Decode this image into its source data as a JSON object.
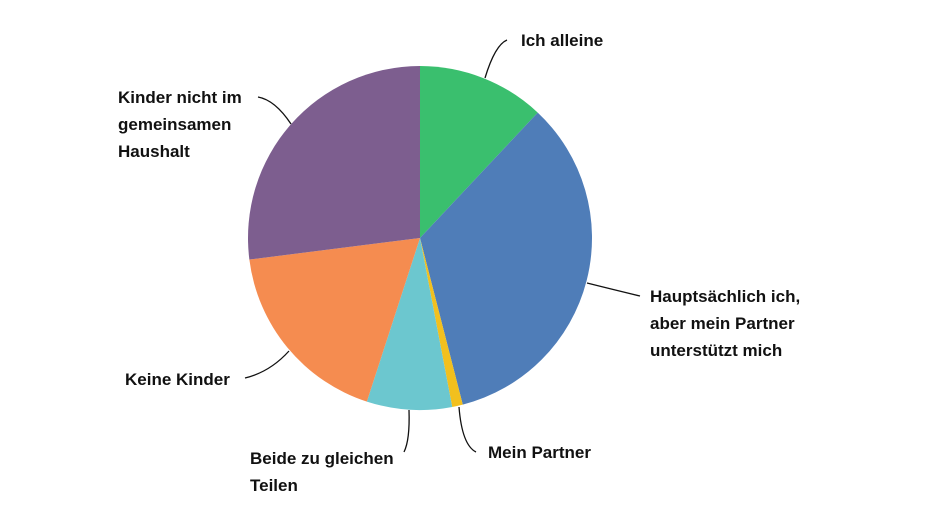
{
  "chart_data": {
    "type": "pie",
    "categories": [
      "Ich alleine",
      "Hauptsächlich ich, aber mein Partner unterstützt mich",
      "Mein Partner",
      "Beide zu gleichen Teilen",
      "Keine Kinder",
      "Kinder nicht im gemeinsamen Haushalt"
    ],
    "values": [
      12,
      34,
      1,
      8,
      18,
      27
    ],
    "colors": [
      "#3abf6e",
      "#4f7db8",
      "#f2c01e",
      "#6cc7cf",
      "#f58c50",
      "#7d5e8f"
    ]
  }
}
